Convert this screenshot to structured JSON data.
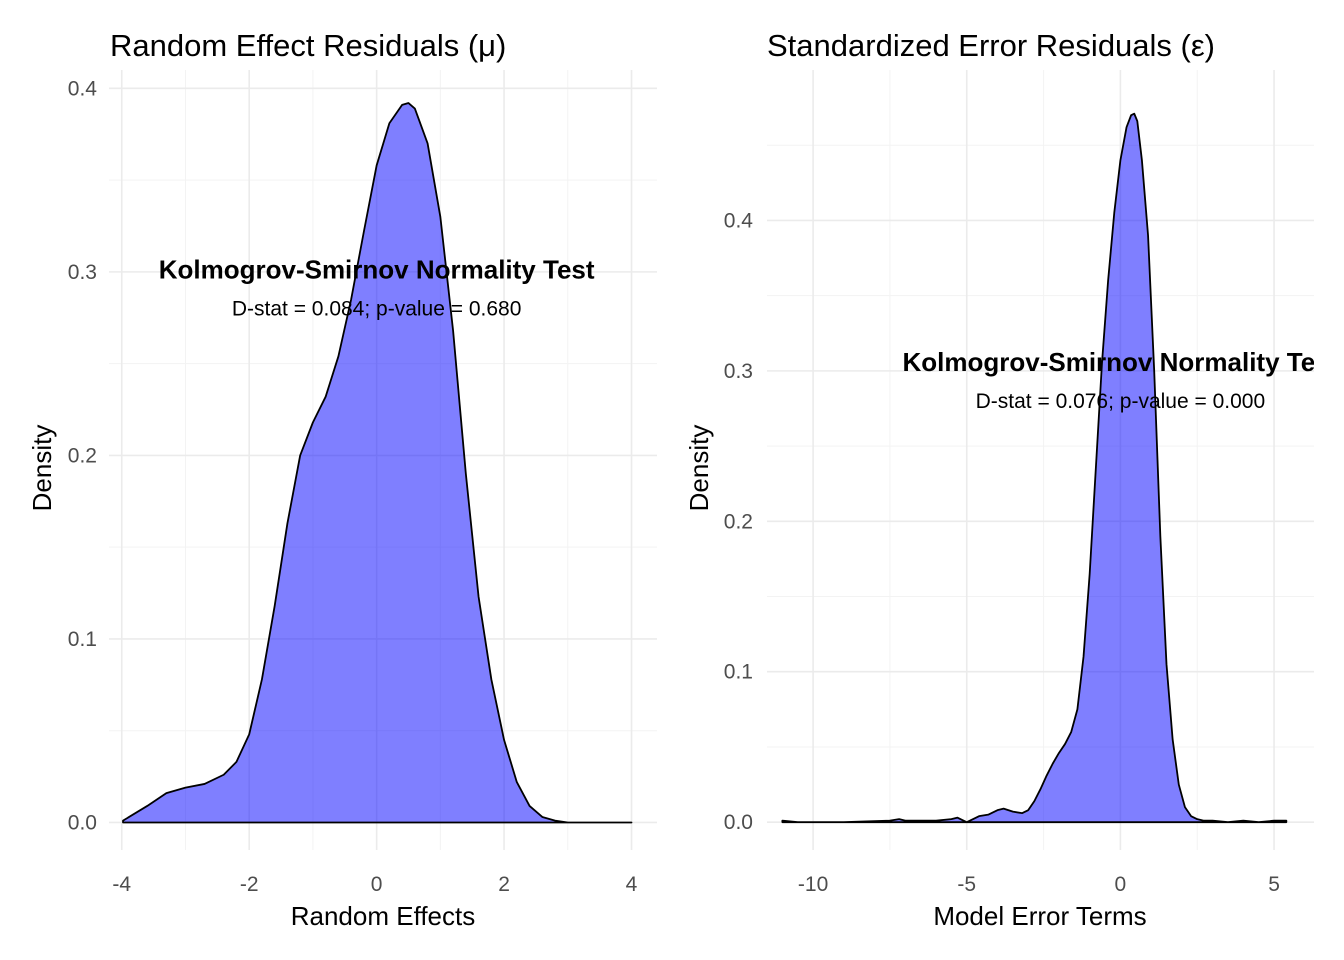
{
  "chart_data": [
    {
      "type": "area",
      "title": "Random Effect Residuals (μ)",
      "xlabel": "Random Effects",
      "ylabel": "Density",
      "xlim": [
        -4.2,
        4.4
      ],
      "ylim": [
        -0.015,
        0.41
      ],
      "xticks": [
        -4,
        -2,
        0,
        2,
        4
      ],
      "xtick_labels": [
        "-4",
        "-2",
        "0",
        "2",
        "4"
      ],
      "yticks": [
        0.0,
        0.1,
        0.2,
        0.3,
        0.4
      ],
      "ytick_labels": [
        "0.0",
        "0.1",
        "0.2",
        "0.3",
        "0.4"
      ],
      "grid": true,
      "fill_color": "#0000ff",
      "fill_alpha": 0.5,
      "outline_color": "#000000",
      "x": [
        -3.98,
        -3.6,
        -3.3,
        -3.0,
        -2.7,
        -2.4,
        -2.2,
        -2.0,
        -1.8,
        -1.6,
        -1.4,
        -1.2,
        -1.0,
        -0.8,
        -0.6,
        -0.4,
        -0.2,
        0.0,
        0.2,
        0.4,
        0.5,
        0.6,
        0.8,
        1.0,
        1.2,
        1.4,
        1.6,
        1.8,
        2.0,
        2.2,
        2.4,
        2.6,
        2.8,
        3.0,
        3.5,
        4.0
      ],
      "y": [
        0.001,
        0.009,
        0.016,
        0.019,
        0.021,
        0.026,
        0.033,
        0.048,
        0.078,
        0.118,
        0.163,
        0.2,
        0.218,
        0.232,
        0.254,
        0.285,
        0.322,
        0.358,
        0.381,
        0.391,
        0.392,
        0.389,
        0.37,
        0.33,
        0.268,
        0.19,
        0.123,
        0.078,
        0.045,
        0.022,
        0.009,
        0.003,
        0.001,
        0.0,
        0.0,
        0.0
      ],
      "annotation": {
        "title": "Kolmogrov-Smirnov Normality Test",
        "subtitle": "D-stat = 0.084; p-value = 0.680",
        "x": 0.0,
        "y": 0.28
      }
    },
    {
      "type": "area",
      "title": "Standardized Error Residuals (ε)",
      "xlabel": "Model Error Terms",
      "ylabel": "Density",
      "xlim": [
        -11.5,
        6.3
      ],
      "ylim": [
        -0.0185,
        0.5
      ],
      "xticks": [
        -10,
        -5,
        0,
        5
      ],
      "xtick_labels": [
        "-10",
        "-5",
        "0",
        "5"
      ],
      "yticks": [
        0.0,
        0.1,
        0.2,
        0.3,
        0.4
      ],
      "ytick_labels": [
        "0.0",
        "0.1",
        "0.2",
        "0.3",
        "0.4"
      ],
      "grid": true,
      "fill_color": "#0000ff",
      "fill_alpha": 0.5,
      "outline_color": "#000000",
      "x": [
        -11.0,
        -10.5,
        -9.0,
        -7.5,
        -7.2,
        -7.0,
        -6.0,
        -5.5,
        -5.3,
        -5.0,
        -4.6,
        -4.3,
        -4.0,
        -3.8,
        -3.5,
        -3.2,
        -3.0,
        -2.8,
        -2.6,
        -2.4,
        -2.2,
        -2.0,
        -1.8,
        -1.6,
        -1.4,
        -1.2,
        -1.0,
        -0.8,
        -0.6,
        -0.4,
        -0.2,
        0.0,
        0.2,
        0.35,
        0.45,
        0.55,
        0.7,
        0.9,
        1.1,
        1.3,
        1.5,
        1.7,
        1.9,
        2.1,
        2.3,
        2.5,
        2.7,
        3.0,
        3.5,
        4.0,
        4.5,
        5.0,
        5.4
      ],
      "y": [
        0.001,
        0.0,
        0.0,
        0.001,
        0.002,
        0.001,
        0.001,
        0.002,
        0.003,
        0.0,
        0.004,
        0.005,
        0.008,
        0.009,
        0.007,
        0.006,
        0.008,
        0.014,
        0.022,
        0.031,
        0.039,
        0.046,
        0.052,
        0.06,
        0.075,
        0.11,
        0.165,
        0.235,
        0.305,
        0.36,
        0.405,
        0.44,
        0.462,
        0.47,
        0.471,
        0.466,
        0.44,
        0.39,
        0.3,
        0.19,
        0.105,
        0.055,
        0.025,
        0.01,
        0.004,
        0.002,
        0.001,
        0.001,
        0.0,
        0.001,
        0.0,
        0.001,
        0.001
      ],
      "annotation": {
        "title": "Kolmogrov-Smirnov Normality Test",
        "subtitle": "D-stat = 0.076; p-value = 0.000",
        "x": 0.0,
        "y": 0.28
      }
    }
  ]
}
